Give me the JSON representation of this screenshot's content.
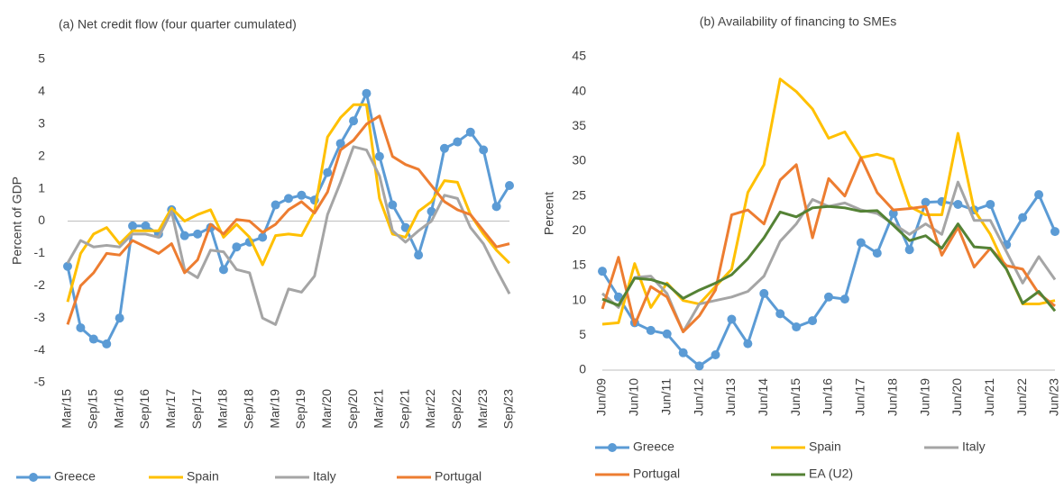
{
  "chart_data": [
    {
      "type": "line",
      "title": "(a) Net credit flow (four quarter cumulated)",
      "y_label": "Percent of GDP",
      "categories": [
        "Mar/15",
        null,
        "Sep/15",
        null,
        "Mar/16",
        null,
        "Sep/16",
        null,
        "Mar/17",
        null,
        "Sep/17",
        null,
        "Mar/18",
        null,
        "Sep/18",
        null,
        "Mar/19",
        null,
        "Sep/19",
        null,
        "Mar/20",
        null,
        "Sep/20",
        null,
        "Mar/21",
        null,
        "Sep/21",
        null,
        "Mar/22",
        null,
        "Sep/22",
        null,
        "Mar/23",
        null,
        "Sep/23"
      ],
      "ylim": [
        -5,
        5
      ],
      "yticks": [
        -5,
        -4,
        -3,
        -2,
        -1,
        0,
        1,
        2,
        3,
        4,
        5
      ],
      "series": [
        {
          "name": "Greece",
          "color": "#5b9bd5",
          "markers": true,
          "values": [
            -1.4,
            -3.3,
            -3.65,
            -3.8,
            -3.0,
            -0.15,
            -0.15,
            -0.4,
            0.35,
            -0.45,
            -0.4,
            -0.2,
            -1.5,
            -0.8,
            -0.65,
            -0.5,
            0.5,
            0.7,
            0.8,
            0.65,
            1.5,
            2.4,
            3.1,
            3.95,
            2.0,
            0.5,
            -0.2,
            -1.05,
            0.3,
            2.25,
            2.45,
            2.75,
            2.2,
            0.45,
            1.1
          ]
        },
        {
          "name": "Spain",
          "color": "#ffc000",
          "values": [
            -2.5,
            -1.0,
            -0.4,
            -0.2,
            -0.7,
            -0.3,
            -0.3,
            -0.3,
            0.4,
            0.0,
            0.2,
            0.35,
            -0.5,
            -0.1,
            -0.5,
            -1.35,
            -0.45,
            -0.4,
            -0.45,
            0.3,
            2.6,
            3.2,
            3.6,
            3.6,
            0.7,
            -0.4,
            -0.5,
            0.3,
            0.6,
            1.25,
            1.2,
            0.2,
            -0.4,
            -0.9,
            -1.3
          ]
        },
        {
          "name": "Italy",
          "color": "#a5a5a5",
          "values": [
            -1.3,
            -0.6,
            -0.8,
            -0.75,
            -0.8,
            -0.4,
            -0.4,
            -0.5,
            0.3,
            -1.5,
            -1.75,
            -0.9,
            -0.95,
            -1.5,
            -1.6,
            -3.0,
            -3.2,
            -2.1,
            -2.2,
            -1.7,
            0.2,
            1.2,
            2.3,
            2.2,
            1.4,
            -0.3,
            -0.65,
            -0.3,
            0.0,
            0.8,
            0.7,
            -0.2,
            -0.7,
            -1.5,
            -2.25
          ]
        },
        {
          "name": "Portugal",
          "color": "#ed7d31",
          "values": [
            -3.2,
            -2.0,
            -1.6,
            -1.0,
            -1.05,
            -0.6,
            -0.8,
            -1.0,
            -0.7,
            -1.6,
            -1.2,
            -0.1,
            -0.4,
            0.05,
            0.0,
            -0.35,
            -0.1,
            0.35,
            0.6,
            0.25,
            0.9,
            2.2,
            2.5,
            3.0,
            3.25,
            2.0,
            1.75,
            1.6,
            1.1,
            0.6,
            0.35,
            0.2,
            -0.3,
            -0.8,
            -0.7
          ]
        }
      ]
    },
    {
      "type": "line",
      "title": "(b) Availability of financing to SMEs",
      "y_label": "Percent",
      "categories": [
        "Jun/09",
        null,
        "Jun/10",
        null,
        "Jun/11",
        null,
        "Jun/12",
        null,
        "Jun/13",
        null,
        "Jun/14",
        null,
        "Jun/15",
        null,
        "Jun/16",
        null,
        "Jun/17",
        null,
        "Jun/18",
        null,
        "Jun/19",
        null,
        "Jun/20",
        null,
        "Jun/21",
        null,
        "Jun/22",
        null,
        "Jun/23"
      ],
      "ylim": [
        0,
        45
      ],
      "yticks": [
        0,
        5,
        10,
        15,
        20,
        25,
        30,
        35,
        40,
        45
      ],
      "series": [
        {
          "name": "Greece",
          "color": "#5b9bd5",
          "markers": true,
          "values": [
            14.2,
            10.5,
            6.8,
            5.7,
            5.2,
            2.5,
            0.6,
            2.2,
            7.3,
            3.8,
            11.0,
            8.1,
            6.2,
            7.1,
            10.5,
            10.2,
            18.3,
            16.8,
            22.5,
            17.3,
            24.1,
            24.2,
            23.8,
            23.0,
            23.8,
            18.0,
            21.9,
            25.2,
            19.9
          ]
        },
        {
          "name": "Spain",
          "color": "#ffc000",
          "values": [
            6.6,
            6.8,
            15.3,
            9.0,
            12.5,
            10.0,
            9.5,
            12.0,
            14.5,
            25.5,
            29.5,
            41.8,
            40.0,
            37.5,
            33.3,
            34.2,
            30.5,
            31.0,
            30.3,
            23.5,
            22.3,
            22.3,
            34.0,
            23.0,
            19.5,
            14.5,
            9.5,
            9.5,
            10.0
          ]
        },
        {
          "name": "Italy",
          "color": "#a5a5a5",
          "values": [
            11.0,
            9.0,
            13.3,
            13.5,
            11.0,
            5.5,
            9.5,
            10.0,
            10.5,
            11.3,
            13.5,
            18.5,
            21.0,
            24.5,
            23.5,
            24.0,
            23.0,
            22.5,
            21.0,
            19.5,
            21.0,
            19.5,
            27.0,
            21.5,
            21.5,
            17.0,
            12.5,
            16.3,
            13.0
          ]
        },
        {
          "name": "Portugal",
          "color": "#ed7d31",
          "values": [
            8.8,
            16.2,
            6.5,
            12.0,
            10.5,
            5.5,
            7.8,
            11.5,
            22.3,
            23.0,
            21.0,
            27.3,
            29.5,
            19.0,
            27.5,
            25.0,
            30.5,
            25.5,
            23.0,
            23.2,
            23.5,
            16.5,
            20.5,
            14.8,
            17.5,
            15.0,
            14.5,
            11.0,
            9.2
          ]
        },
        {
          "name": "EA (U2)",
          "color": "#548235",
          "values": [
            10.2,
            9.3,
            13.2,
            13.0,
            12.3,
            10.3,
            11.5,
            12.5,
            13.7,
            16.0,
            19.0,
            22.7,
            22.0,
            23.3,
            23.5,
            23.3,
            22.8,
            22.9,
            20.8,
            18.6,
            19.3,
            17.5,
            21.0,
            17.7,
            17.5,
            14.5,
            9.6,
            11.3,
            8.5
          ]
        }
      ]
    }
  ]
}
